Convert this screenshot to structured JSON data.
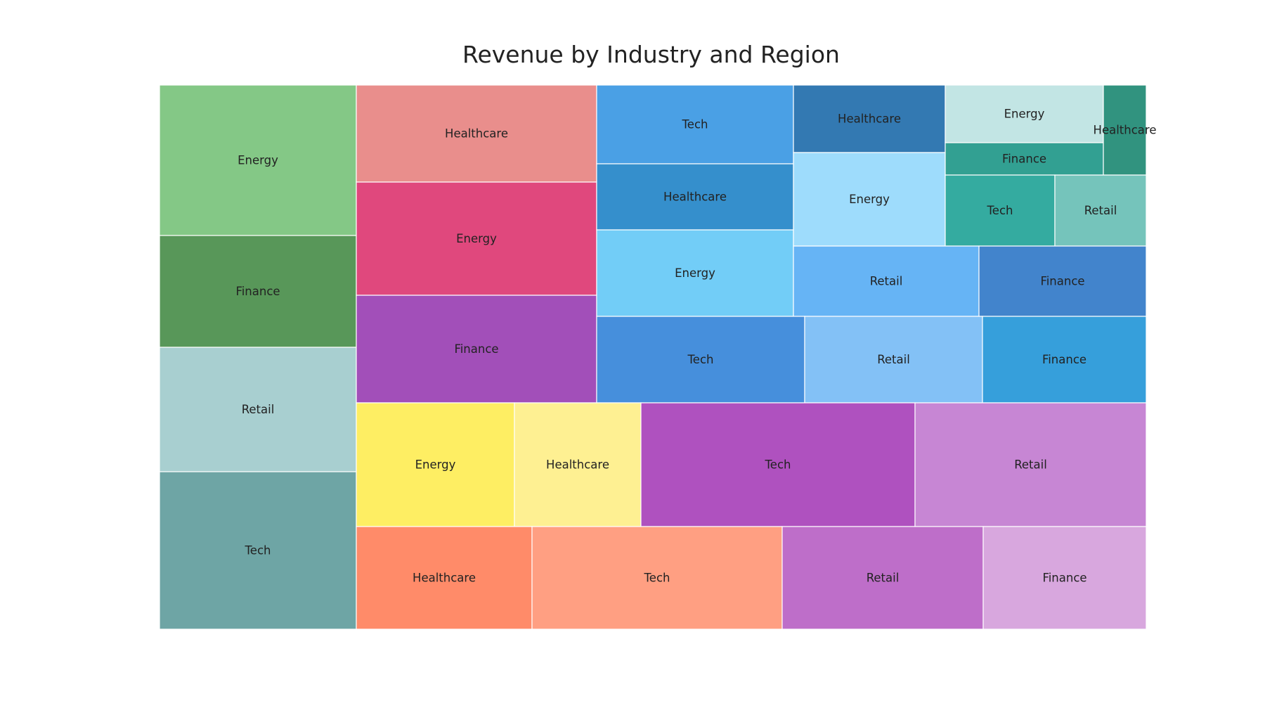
{
  "chart_data": {
    "type": "treemap",
    "title": "Revenue by Industry and Region",
    "groups": [
      {
        "tiles": [
          {
            "label": "Energy",
            "value": 43.7,
            "color": "#84c886"
          },
          {
            "label": "Finance",
            "value": 32.6,
            "color": "#589759"
          },
          {
            "label": "Retail",
            "value": 36.2,
            "color": "#a8cfd0"
          },
          {
            "label": "Tech",
            "value": 45.7,
            "color": "#6ea5a5"
          }
        ]
      },
      {
        "tiles": [
          {
            "label": "Healthcare",
            "value": 34.1,
            "color": "#e98e8c"
          },
          {
            "label": "Energy",
            "value": 39.7,
            "color": "#e0487d"
          },
          {
            "label": "Finance",
            "value": 37.9,
            "color": "#a24fb9"
          }
        ]
      },
      {
        "tiles": [
          {
            "label": "Tech",
            "value": 23.0,
            "color": "#4aa0e5"
          },
          {
            "label": "Healthcare",
            "value": 19.0,
            "color": "#358fcc"
          },
          {
            "label": "Energy",
            "value": 25.0,
            "color": "#72cdf7"
          }
        ]
      },
      {
        "tiles": [
          {
            "label": "Healthcare",
            "value": 15.0,
            "color": "#3379b2"
          },
          {
            "label": "Energy",
            "value": 21.0,
            "color": "#9edcfc"
          }
        ]
      },
      {
        "tiles": [
          {
            "label": "Energy",
            "value": 13.3,
            "color": "#c2e5e4"
          },
          {
            "label": "Finance",
            "value": 7.7,
            "color": "#32a092"
          },
          {
            "label": "Healthcare",
            "value": 5.6,
            "color": "#31937f"
          },
          {
            "label": "Tech",
            "value": 11.3,
            "color": "#34aba0"
          },
          {
            "label": "Retail",
            "value": 11.4,
            "color": "#75c4bb"
          }
        ]
      },
      {
        "tiles": [
          {
            "label": "Retail",
            "value": 19.5,
            "color": "#66b4f5"
          },
          {
            "label": "Finance",
            "value": 17.5,
            "color": "#4284cc"
          }
        ]
      },
      {
        "tiles": [
          {
            "label": "Tech",
            "value": 26.7,
            "color": "#468fdc"
          },
          {
            "label": "Retail",
            "value": 22.9,
            "color": "#83c1f6"
          },
          {
            "label": "Finance",
            "value": 20.9,
            "color": "#369fdb"
          }
        ]
      },
      {
        "tiles": [
          {
            "label": "Energy",
            "value": 28.9,
            "color": "#feee63"
          },
          {
            "label": "Healthcare",
            "value": 23.4,
            "color": "#fef092"
          },
          {
            "label": "Tech",
            "value": 50.3,
            "color": "#af51bf"
          },
          {
            "label": "Retail",
            "value": 42.6,
            "color": "#c786d4"
          }
        ]
      },
      {
        "tiles": [
          {
            "label": "Healthcare",
            "value": 26.8,
            "color": "#ff8b69"
          },
          {
            "label": "Tech",
            "value": 38.3,
            "color": "#ff9f82"
          },
          {
            "label": "Retail",
            "value": 30.7,
            "color": "#be6ec9"
          },
          {
            "label": "Finance",
            "value": 24.9,
            "color": "#d8a7de"
          }
        ]
      }
    ]
  }
}
